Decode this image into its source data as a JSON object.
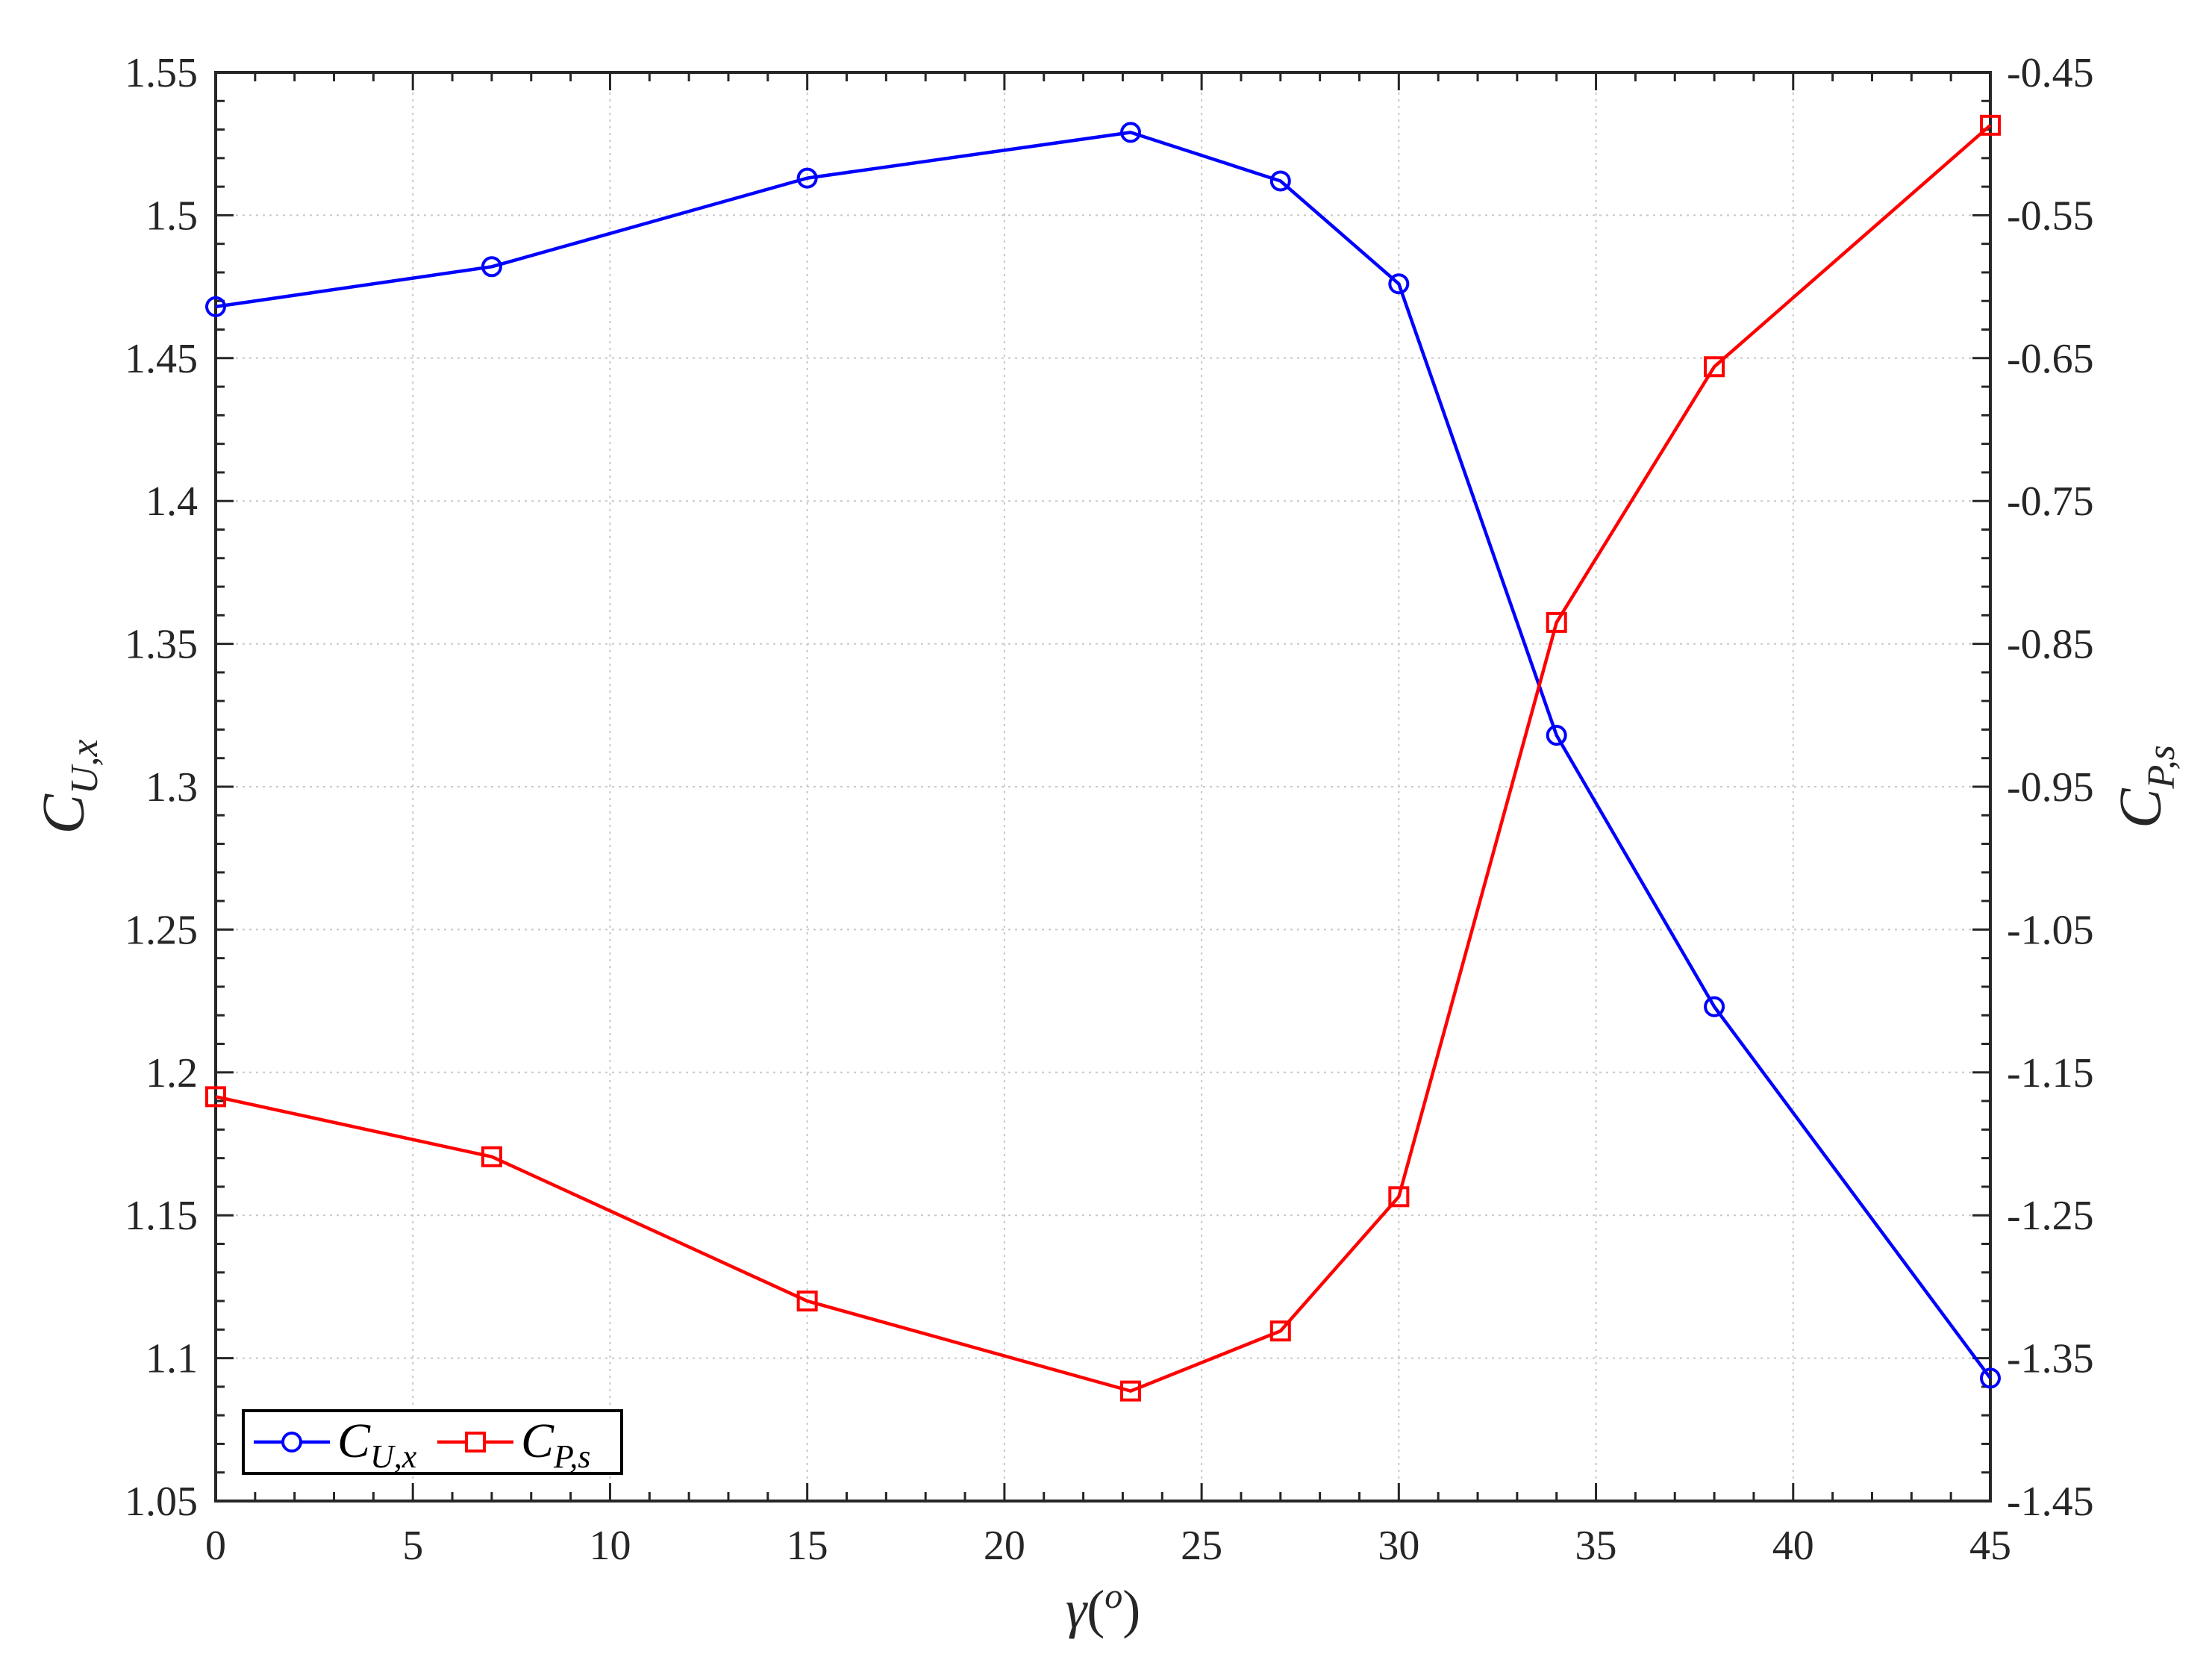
{
  "chart_data": {
    "type": "line",
    "dual_y_axis": true,
    "xlabel": "γ(o)",
    "xlabel_main": "γ",
    "xlabel_sup": "o",
    "ylabel_left": "CU,x",
    "ylabel_left_main": "C",
    "ylabel_left_sub": "U,x",
    "ylabel_right": "CP,s",
    "ylabel_right_main": "C",
    "ylabel_right_sub": "P,s",
    "xlim": [
      0,
      45
    ],
    "ylim_left": [
      1.05,
      1.55
    ],
    "ylim_right": [
      -1.45,
      -0.45
    ],
    "x_ticks": [
      "0",
      "5",
      "10",
      "15",
      "20",
      "25",
      "30",
      "35",
      "40",
      "45"
    ],
    "y_left_ticks": [
      "1.05",
      "1.1",
      "1.15",
      "1.2",
      "1.25",
      "1.3",
      "1.35",
      "1.4",
      "1.45",
      "1.5",
      "1.55"
    ],
    "y_right_ticks": [
      "-1.45",
      "-1.35",
      "-1.25",
      "-1.15",
      "-1.05",
      "-0.95",
      "-0.85",
      "-0.75",
      "-0.65",
      "-0.55",
      "-0.45"
    ],
    "grid": true,
    "legend_position": "bottom-left",
    "series": [
      {
        "name": "CU,x",
        "name_main": "C",
        "name_sub": "U,x",
        "axis": "left",
        "marker": "circle",
        "color": "#0000ff",
        "x": [
          0,
          7,
          15,
          23.2,
          27,
          30,
          34,
          38,
          45
        ],
        "values": [
          1.468,
          1.482,
          1.513,
          1.529,
          1.512,
          1.476,
          1.318,
          1.223,
          1.093
        ]
      },
      {
        "name": "CP,s",
        "name_main": "C",
        "name_sub": "P,s",
        "axis": "right",
        "marker": "square",
        "color": "#ff0000",
        "x": [
          0,
          7,
          15,
          23.2,
          27,
          30,
          34,
          38,
          45
        ],
        "values": [
          -1.167,
          -1.209,
          -1.31,
          -1.373,
          -1.331,
          -1.237,
          -0.835,
          -0.656,
          -0.487
        ]
      }
    ]
  }
}
